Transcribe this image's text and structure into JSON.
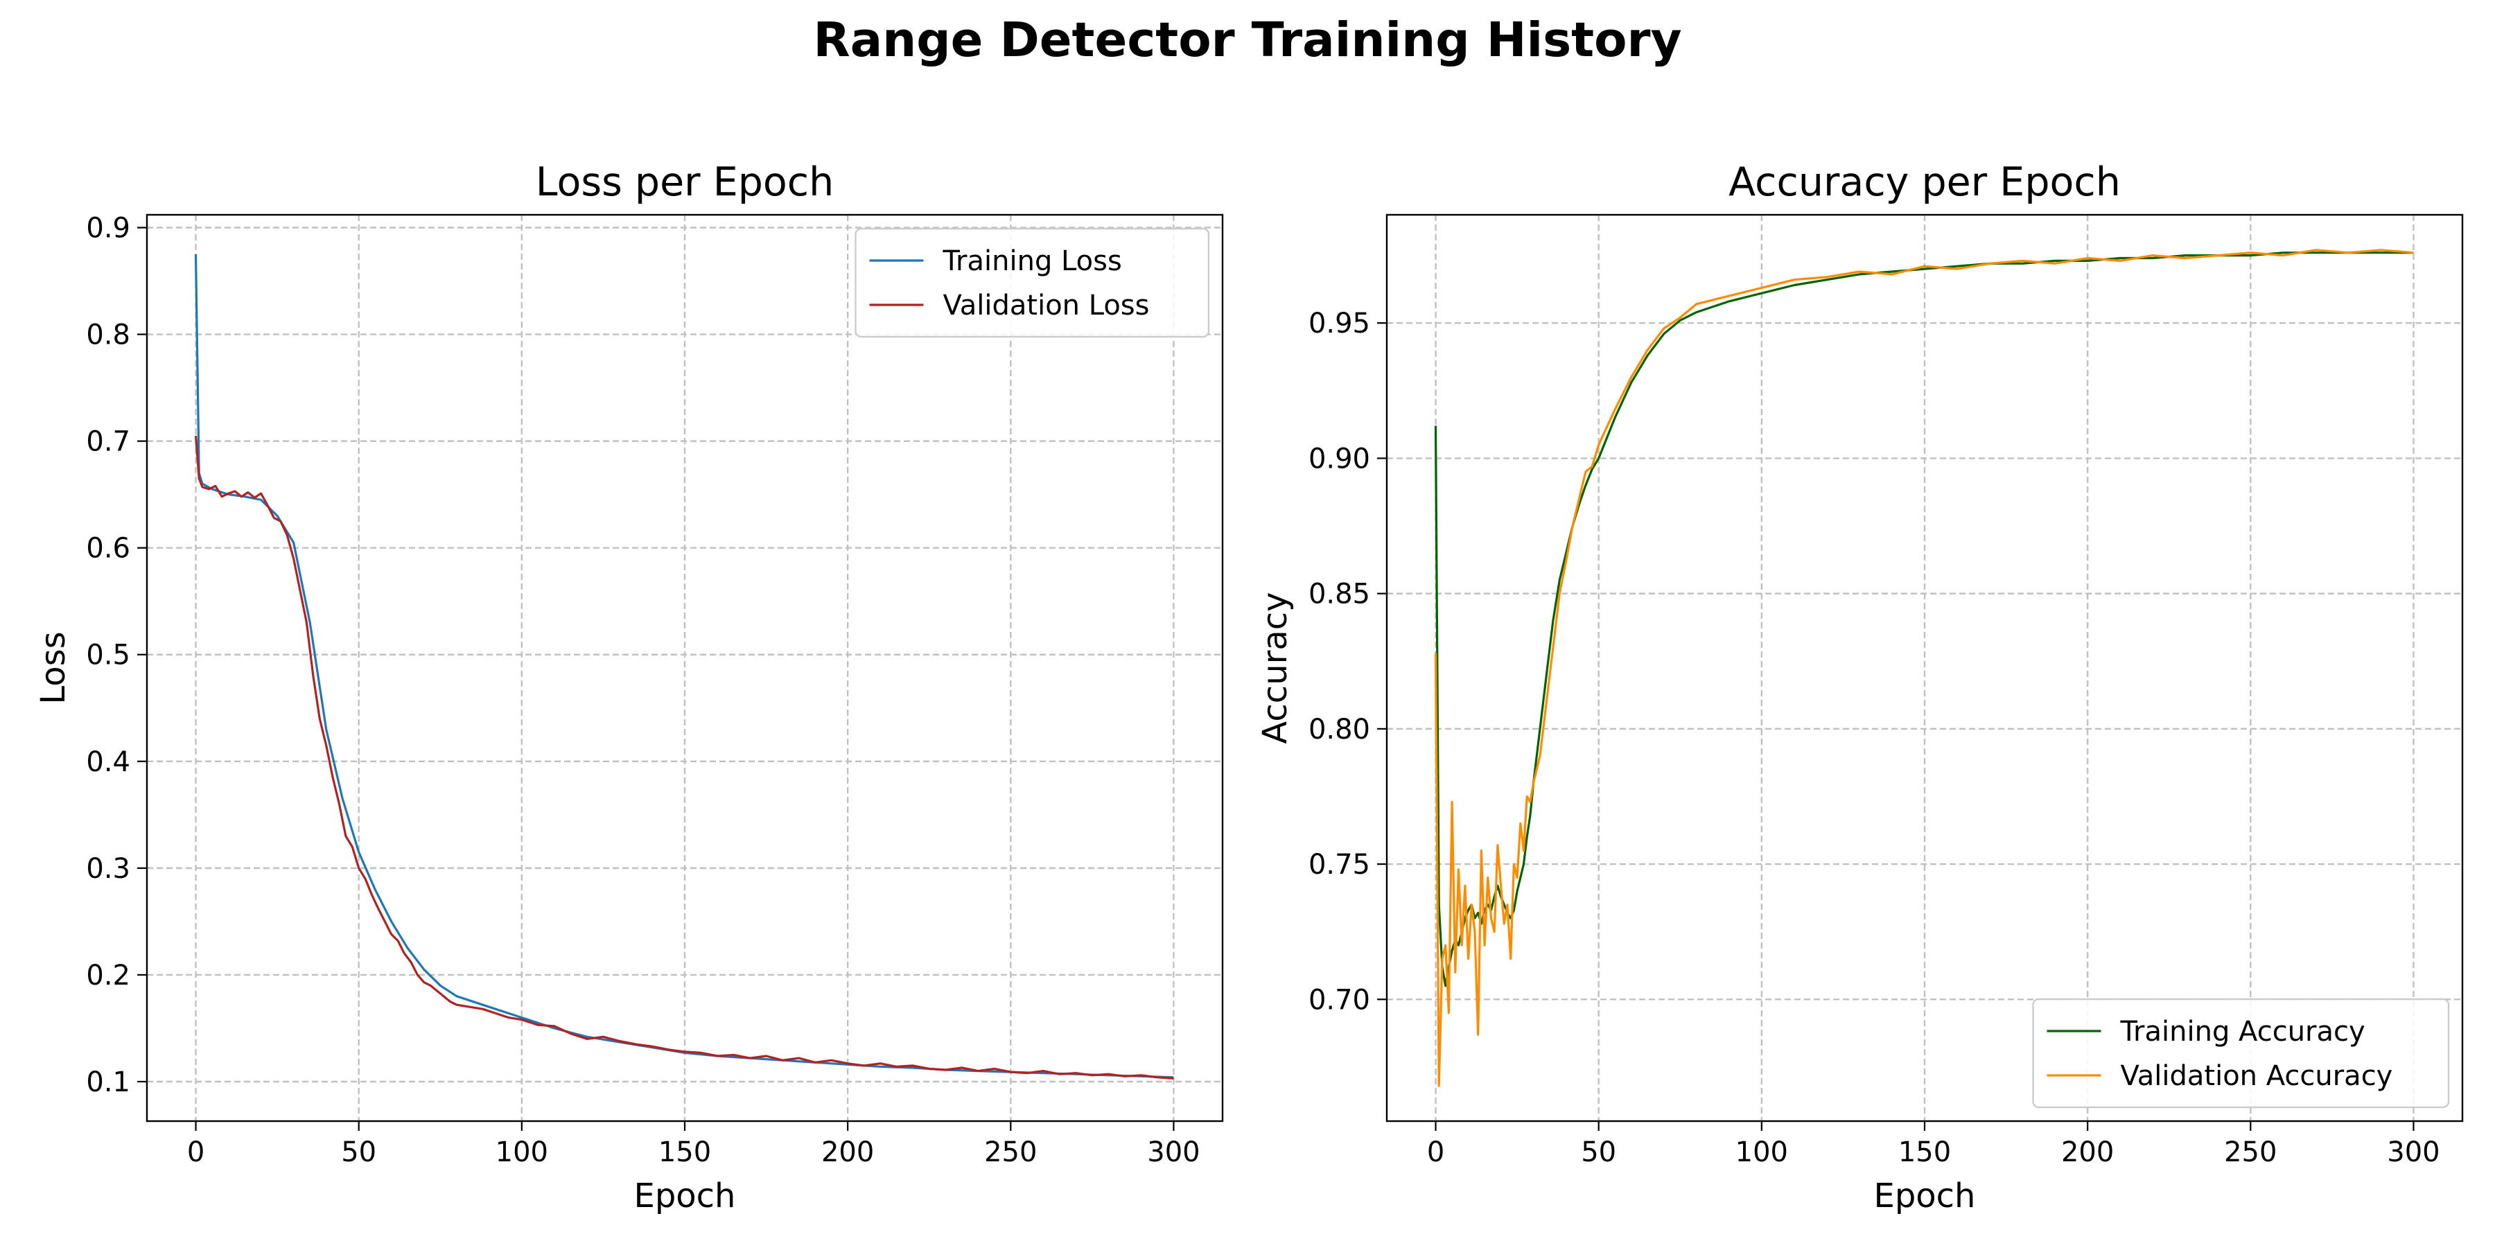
{
  "figure": {
    "title": "Range Detector Training History"
  },
  "chart_data": [
    {
      "type": "line",
      "title": "Loss per Epoch",
      "xlabel": "Epoch",
      "ylabel": "Loss",
      "xlim": [
        -15,
        315
      ],
      "ylim": [
        0.063,
        0.912
      ],
      "xticks": [
        0,
        50,
        100,
        150,
        200,
        250,
        300
      ],
      "yticks": [
        0.1,
        0.2,
        0.3,
        0.4,
        0.5,
        0.6,
        0.7,
        0.8,
        0.9
      ],
      "grid": true,
      "legend_position": "upper-right",
      "series": [
        {
          "name": "Training Loss",
          "color": "#1f77b4",
          "x": [
            0,
            1,
            2,
            5,
            10,
            15,
            20,
            25,
            30,
            35,
            40,
            45,
            50,
            55,
            60,
            65,
            70,
            75,
            80,
            90,
            100,
            110,
            120,
            130,
            140,
            150,
            160,
            170,
            180,
            190,
            200,
            210,
            220,
            230,
            240,
            250,
            260,
            270,
            280,
            290,
            300
          ],
          "y": [
            0.875,
            0.67,
            0.66,
            0.655,
            0.65,
            0.648,
            0.645,
            0.63,
            0.605,
            0.53,
            0.43,
            0.365,
            0.315,
            0.28,
            0.25,
            0.225,
            0.205,
            0.19,
            0.18,
            0.17,
            0.16,
            0.15,
            0.142,
            0.137,
            0.132,
            0.127,
            0.124,
            0.122,
            0.12,
            0.118,
            0.116,
            0.114,
            0.113,
            0.111,
            0.11,
            0.109,
            0.108,
            0.107,
            0.106,
            0.105,
            0.104
          ]
        },
        {
          "name": "Validation Loss",
          "color": "#b22222",
          "x": [
            0,
            1,
            2,
            4,
            6,
            8,
            10,
            12,
            14,
            16,
            18,
            20,
            22,
            24,
            26,
            28,
            30,
            32,
            34,
            36,
            38,
            40,
            42,
            44,
            46,
            48,
            50,
            52,
            54,
            56,
            58,
            60,
            62,
            64,
            66,
            68,
            70,
            72,
            74,
            76,
            78,
            80,
            84,
            88,
            92,
            96,
            100,
            105,
            110,
            115,
            120,
            125,
            130,
            135,
            140,
            145,
            150,
            155,
            160,
            165,
            170,
            175,
            180,
            185,
            190,
            195,
            200,
            205,
            210,
            215,
            220,
            225,
            230,
            235,
            240,
            245,
            250,
            255,
            260,
            265,
            270,
            275,
            280,
            285,
            290,
            295,
            300
          ],
          "y": [
            0.705,
            0.665,
            0.657,
            0.655,
            0.658,
            0.648,
            0.651,
            0.653,
            0.648,
            0.652,
            0.647,
            0.651,
            0.64,
            0.628,
            0.625,
            0.612,
            0.59,
            0.56,
            0.53,
            0.48,
            0.44,
            0.415,
            0.385,
            0.36,
            0.33,
            0.32,
            0.3,
            0.29,
            0.275,
            0.262,
            0.25,
            0.238,
            0.232,
            0.22,
            0.212,
            0.2,
            0.193,
            0.19,
            0.185,
            0.18,
            0.175,
            0.172,
            0.17,
            0.168,
            0.164,
            0.16,
            0.158,
            0.153,
            0.152,
            0.145,
            0.14,
            0.142,
            0.138,
            0.135,
            0.133,
            0.13,
            0.128,
            0.127,
            0.124,
            0.125,
            0.122,
            0.124,
            0.12,
            0.122,
            0.118,
            0.12,
            0.117,
            0.115,
            0.117,
            0.114,
            0.115,
            0.112,
            0.111,
            0.113,
            0.11,
            0.112,
            0.109,
            0.108,
            0.11,
            0.107,
            0.108,
            0.106,
            0.107,
            0.105,
            0.106,
            0.104,
            0.103
          ]
        }
      ]
    },
    {
      "type": "line",
      "title": "Accuracy per Epoch",
      "xlabel": "Epoch",
      "ylabel": "Accuracy",
      "xlim": [
        -15,
        315
      ],
      "ylim": [
        0.655,
        0.99
      ],
      "xticks": [
        0,
        50,
        100,
        150,
        200,
        250,
        300
      ],
      "yticks": [
        0.7,
        0.75,
        0.8,
        0.85,
        0.9,
        0.95
      ],
      "grid": true,
      "legend_position": "lower-right",
      "series": [
        {
          "name": "Training Accuracy",
          "color": "#006400",
          "x": [
            0,
            1,
            2,
            3,
            4,
            5,
            6,
            7,
            8,
            9,
            10,
            11,
            12,
            13,
            14,
            15,
            16,
            17,
            18,
            19,
            20,
            21,
            22,
            23,
            24,
            25,
            26,
            27,
            28,
            29,
            30,
            32,
            34,
            36,
            38,
            40,
            42,
            44,
            46,
            48,
            50,
            55,
            60,
            65,
            70,
            75,
            80,
            90,
            100,
            110,
            120,
            130,
            140,
            150,
            160,
            170,
            180,
            190,
            200,
            210,
            220,
            230,
            240,
            250,
            260,
            270,
            280,
            290,
            300
          ],
          "y": [
            0.912,
            0.735,
            0.712,
            0.705,
            0.712,
            0.718,
            0.722,
            0.72,
            0.725,
            0.73,
            0.733,
            0.735,
            0.73,
            0.732,
            0.728,
            0.733,
            0.735,
            0.733,
            0.738,
            0.742,
            0.738,
            0.735,
            0.732,
            0.73,
            0.733,
            0.74,
            0.745,
            0.75,
            0.76,
            0.768,
            0.78,
            0.8,
            0.82,
            0.84,
            0.855,
            0.865,
            0.875,
            0.883,
            0.89,
            0.896,
            0.9,
            0.915,
            0.928,
            0.938,
            0.946,
            0.951,
            0.954,
            0.958,
            0.961,
            0.964,
            0.966,
            0.968,
            0.969,
            0.97,
            0.971,
            0.972,
            0.972,
            0.973,
            0.973,
            0.974,
            0.974,
            0.975,
            0.975,
            0.975,
            0.976,
            0.976,
            0.976,
            0.976,
            0.976
          ]
        },
        {
          "name": "Validation Accuracy",
          "color": "#ff8c00",
          "x": [
            0,
            1,
            2,
            3,
            4,
            5,
            6,
            7,
            8,
            9,
            10,
            11,
            12,
            13,
            14,
            15,
            16,
            17,
            18,
            19,
            20,
            21,
            22,
            23,
            24,
            25,
            26,
            27,
            28,
            29,
            30,
            32,
            34,
            36,
            38,
            40,
            42,
            44,
            46,
            48,
            50,
            55,
            60,
            65,
            70,
            75,
            80,
            90,
            100,
            110,
            120,
            130,
            140,
            150,
            160,
            170,
            180,
            190,
            200,
            210,
            220,
            230,
            240,
            250,
            260,
            270,
            280,
            290,
            300
          ],
          "y": [
            0.828,
            0.668,
            0.715,
            0.72,
            0.695,
            0.773,
            0.71,
            0.748,
            0.72,
            0.742,
            0.715,
            0.735,
            0.725,
            0.687,
            0.755,
            0.72,
            0.745,
            0.73,
            0.725,
            0.757,
            0.742,
            0.728,
            0.735,
            0.715,
            0.75,
            0.745,
            0.765,
            0.755,
            0.775,
            0.773,
            0.78,
            0.79,
            0.81,
            0.83,
            0.85,
            0.862,
            0.875,
            0.885,
            0.895,
            0.897,
            0.905,
            0.918,
            0.93,
            0.94,
            0.948,
            0.952,
            0.957,
            0.96,
            0.963,
            0.966,
            0.967,
            0.969,
            0.968,
            0.971,
            0.97,
            0.972,
            0.973,
            0.972,
            0.974,
            0.973,
            0.975,
            0.974,
            0.975,
            0.976,
            0.975,
            0.977,
            0.976,
            0.977,
            0.976
          ]
        }
      ]
    }
  ]
}
